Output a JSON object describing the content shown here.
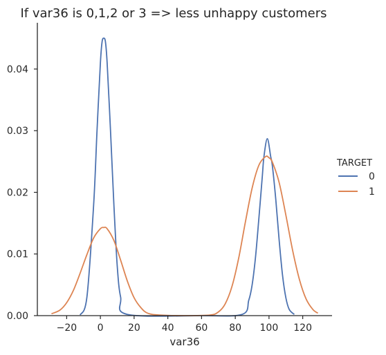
{
  "chart_data": {
    "type": "line",
    "title": "If var36 is 0,1,2 or 3 => less unhappy customers",
    "xlabel": "var36",
    "ylabel": "",
    "xlim": [
      -30,
      130
    ],
    "ylim": [
      0,
      0.0475
    ],
    "x_ticks": [
      -20,
      0,
      20,
      40,
      60,
      80,
      100,
      120
    ],
    "y_ticks": [
      0.0,
      0.01,
      0.02,
      0.03,
      0.04
    ],
    "grid": false,
    "legend": {
      "title": "TARGET",
      "placement": "right"
    },
    "series": [
      {
        "name": "0",
        "color": "#4c72b0",
        "x": [
          -12,
          -8,
          -4,
          -2,
          0,
          1,
          2,
          3,
          4,
          6,
          8,
          10,
          12,
          16,
          60,
          84,
          88,
          90,
          92,
          94,
          96,
          97,
          99,
          101,
          102,
          104,
          106,
          108,
          110,
          112,
          115
        ],
        "y": [
          0.0001,
          0.003,
          0.018,
          0.03,
          0.041,
          0.0444,
          0.045,
          0.0444,
          0.041,
          0.03,
          0.018,
          0.008,
          0.003,
          0.0002,
          0.0,
          0.0002,
          0.0025,
          0.005,
          0.0095,
          0.0158,
          0.0225,
          0.0258,
          0.0287,
          0.0258,
          0.0243,
          0.0189,
          0.0123,
          0.0066,
          0.0029,
          0.001,
          0.0002
        ],
        "units_note": ""
      },
      {
        "name": "1",
        "color": "#dd8452",
        "x": [
          -29,
          -24,
          -20,
          -16,
          -12,
          -8,
          -4,
          0,
          2,
          4,
          8,
          12,
          16,
          20,
          24,
          28,
          35,
          50,
          65,
          70,
          74,
          78,
          82,
          86,
          90,
          94,
          98,
          100,
          102,
          106,
          110,
          114,
          118,
          122,
          126,
          129
        ],
        "y": [
          0.0003,
          0.0009,
          0.0021,
          0.0041,
          0.0069,
          0.0099,
          0.0126,
          0.0141,
          0.0143,
          0.0141,
          0.0122,
          0.009,
          0.0056,
          0.0029,
          0.0013,
          0.0004,
          0.0001,
          0.0,
          0.0001,
          0.0006,
          0.0019,
          0.0047,
          0.0093,
          0.0152,
          0.0207,
          0.0244,
          0.0258,
          0.0256,
          0.0249,
          0.0216,
          0.0163,
          0.0106,
          0.0059,
          0.0027,
          0.001,
          0.0004
        ]
      }
    ]
  }
}
